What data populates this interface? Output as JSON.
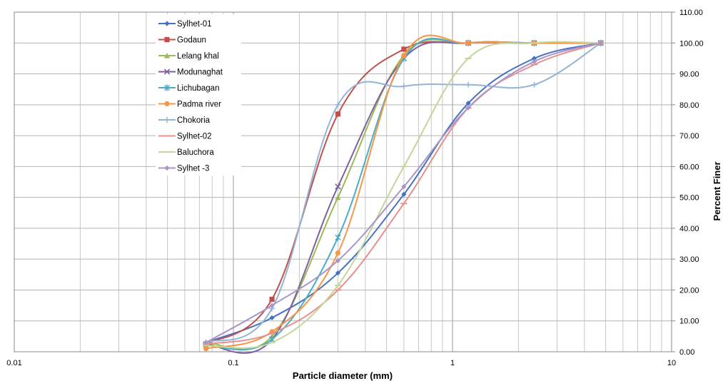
{
  "chart_data": {
    "type": "line",
    "xscale": "log",
    "xlim": [
      0.01,
      10
    ],
    "ylim": [
      0,
      110
    ],
    "title": "",
    "xlabel": "Particle diameter (mm)",
    "ylabel": "Percent  Finer",
    "y_axis_side": "right",
    "grid": true,
    "legend_placement": "top-left",
    "x_ticks": [
      {
        "value": 0.01,
        "label": "0.01"
      },
      {
        "value": 0.1,
        "label": "0.1"
      },
      {
        "value": 1,
        "label": "1"
      },
      {
        "value": 10,
        "label": "10"
      }
    ],
    "y_ticks": [
      {
        "value": 0,
        "label": "0.00"
      },
      {
        "value": 10,
        "label": "10.00"
      },
      {
        "value": 20,
        "label": "20.00"
      },
      {
        "value": 30,
        "label": "30.00"
      },
      {
        "value": 40,
        "label": "40.00"
      },
      {
        "value": 50,
        "label": "50.00"
      },
      {
        "value": 60,
        "label": "60.00"
      },
      {
        "value": 70,
        "label": "70.00"
      },
      {
        "value": 80,
        "label": "80.00"
      },
      {
        "value": 90,
        "label": "90.00"
      },
      {
        "value": 100,
        "label": "100.00"
      },
      {
        "value": 110,
        "label": "110.00"
      }
    ],
    "x": [
      0.075,
      0.15,
      0.3,
      0.6,
      1.18,
      2.36,
      4.75
    ],
    "series": [
      {
        "name": "Sylhet-01",
        "color": "#4472C4",
        "marker": "diamond",
        "values": [
          3,
          11,
          25.5,
          51,
          80.5,
          95,
          100
        ]
      },
      {
        "name": "Godaun",
        "color": "#C0504D",
        "marker": "square",
        "values": [
          2.5,
          17,
          77,
          98,
          100,
          100,
          100
        ]
      },
      {
        "name": "Lelang khal",
        "color": "#9BBB59",
        "marker": "triangle",
        "values": [
          3,
          5,
          50,
          96,
          100,
          100,
          100
        ]
      },
      {
        "name": "Modunaghat",
        "color": "#7F5F9F",
        "marker": "x",
        "values": [
          2.5,
          4,
          53.5,
          95,
          100,
          100,
          100
        ]
      },
      {
        "name": "Lichubagan",
        "color": "#4BACC6",
        "marker": "star",
        "values": [
          2,
          4,
          37,
          95,
          100,
          100,
          100
        ]
      },
      {
        "name": "Padma river",
        "color": "#F79646",
        "marker": "circle",
        "values": [
          1,
          6.5,
          32,
          96,
          100,
          100,
          100
        ]
      },
      {
        "name": "Chokoria",
        "color": "#95B3D7",
        "marker": "plus",
        "values": [
          3,
          14,
          80,
          86,
          86.5,
          86.5,
          100
        ]
      },
      {
        "name": "Sylhet-02",
        "color": "#E6908E",
        "marker": "dash",
        "values": [
          2.5,
          6,
          20,
          48,
          79,
          93,
          100
        ]
      },
      {
        "name": "Baluchora",
        "color": "#C3D69B",
        "marker": "dash",
        "values": [
          2,
          3,
          21.5,
          60,
          95,
          100,
          100
        ]
      },
      {
        "name": "Sylhet -3",
        "color": "#A995C9",
        "marker": "diamond",
        "values": [
          3,
          15,
          29.5,
          53.5,
          79,
          94,
          100
        ]
      }
    ]
  }
}
